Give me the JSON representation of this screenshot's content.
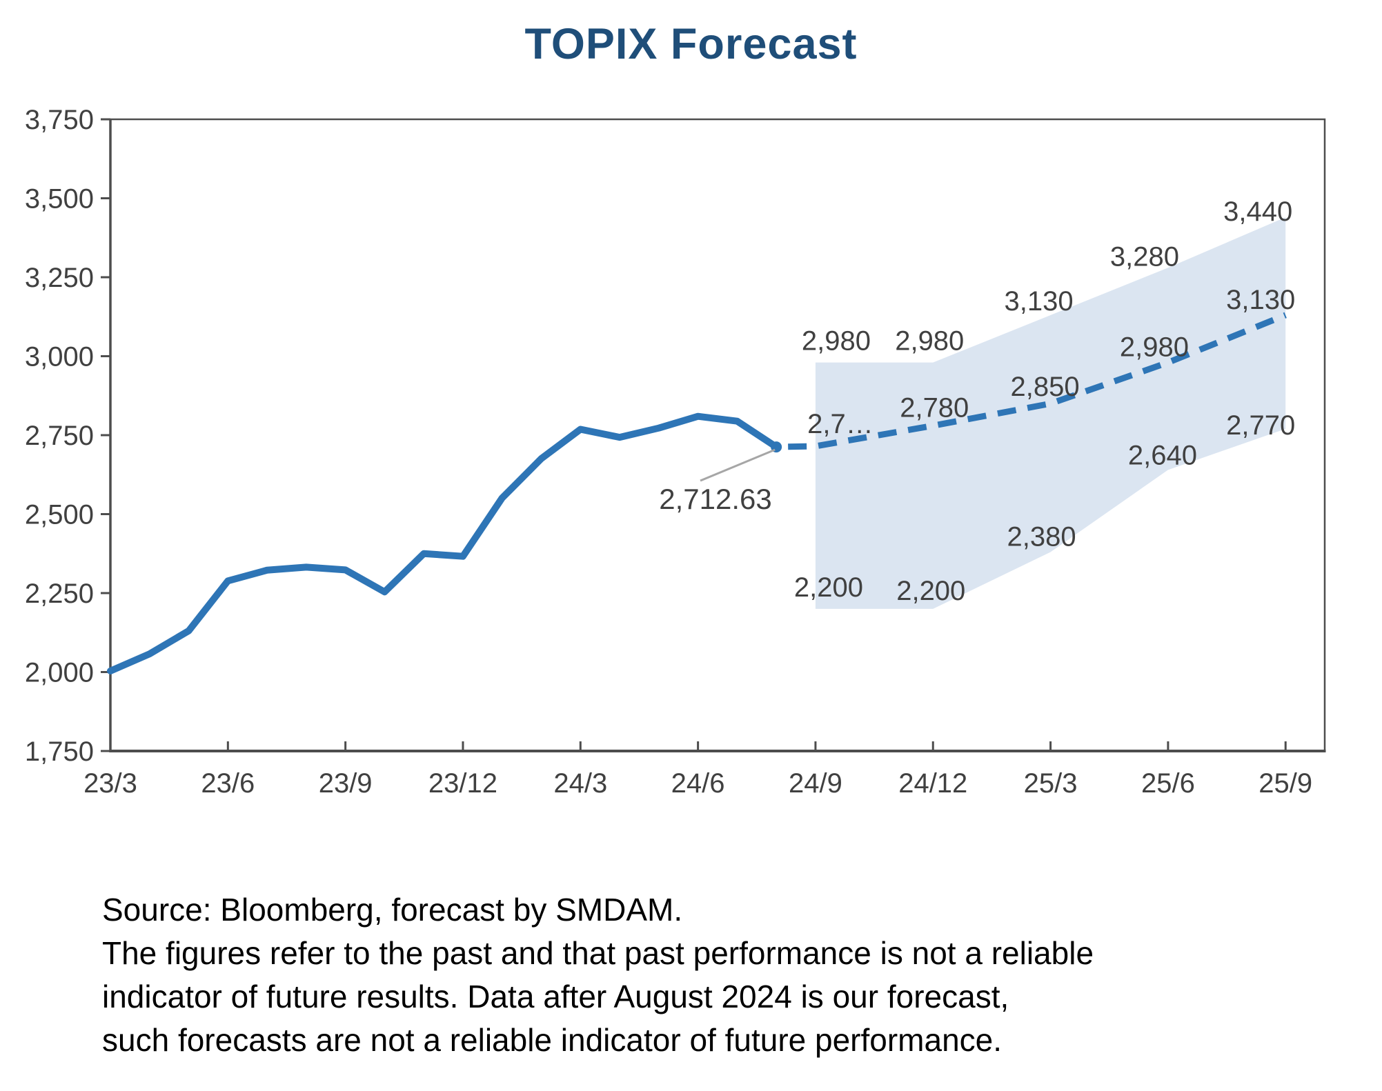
{
  "title": "TOPIX Forecast",
  "footer": {
    "lines": [
      "Source: Bloomberg, forecast by SMDAM.",
      "The figures refer to the past and that past performance is not a reliable",
      "indicator of future results. Data after August 2024 is our forecast,",
      "such forecasts are not a reliable indicator of future performance."
    ]
  },
  "chart_data": {
    "type": "line",
    "title": "TOPIX Forecast",
    "ylim": [
      1750,
      3750
    ],
    "y_ticks": [
      {
        "value": 1750,
        "label": "1,750"
      },
      {
        "value": 2000,
        "label": "2,000"
      },
      {
        "value": 2250,
        "label": "2,250"
      },
      {
        "value": 2500,
        "label": "2,500"
      },
      {
        "value": 2750,
        "label": "2,750"
      },
      {
        "value": 3000,
        "label": "3,000"
      },
      {
        "value": 3250,
        "label": "3,250"
      },
      {
        "value": 3500,
        "label": "3,500"
      },
      {
        "value": 3750,
        "label": "3,750"
      }
    ],
    "x_tick_labels": [
      "23/3",
      "23/6",
      "23/9",
      "23/12",
      "24/3",
      "24/6",
      "24/9",
      "24/12",
      "25/3",
      "25/6",
      "25/9"
    ],
    "grid": false,
    "legend": "none",
    "series": [
      {
        "name": "TOPIX actual (solid line)",
        "style": "solid",
        "x": [
          "23/3",
          "23/4",
          "23/5",
          "23/6",
          "23/7",
          "23/8",
          "23/9",
          "23/10",
          "23/11",
          "23/12",
          "24/1",
          "24/2",
          "24/3",
          "24/4",
          "24/5",
          "24/6",
          "24/7",
          "24/8"
        ],
        "values": [
          2003.5,
          2057.5,
          2130.6,
          2288.6,
          2322.6,
          2332.1,
          2323.4,
          2253.7,
          2374.9,
          2366.4,
          2551.1,
          2675.7,
          2768.6,
          2743.2,
          2772.5,
          2809.6,
          2794.3,
          2712.63
        ]
      },
      {
        "name": "Forecast central (dashed line)",
        "style": "dashed",
        "x": [
          "24/9",
          "24/12",
          "25/3",
          "25/6",
          "25/9"
        ],
        "values": [
          2715,
          2780,
          2850,
          2980,
          3130
        ],
        "labels": [
          "2,7…",
          "2,780",
          "2,850",
          "2,980",
          "3,130"
        ]
      },
      {
        "name": "Forecast range upper (band top)",
        "style": "band-upper",
        "x": [
          "24/9",
          "24/12",
          "25/3",
          "25/6",
          "25/9"
        ],
        "values": [
          2980,
          2980,
          3130,
          3280,
          3440
        ],
        "labels": [
          "2,980",
          "2,980",
          "3,130",
          "3,280",
          "3,440"
        ]
      },
      {
        "name": "Forecast range lower (band bottom)",
        "style": "band-lower",
        "x": [
          "24/9",
          "24/12",
          "25/3",
          "25/6",
          "25/9"
        ],
        "values": [
          2200,
          2200,
          2380,
          2640,
          2770
        ],
        "labels": [
          "2,200",
          "2,200",
          "2,380",
          "2,640",
          "2,770"
        ]
      }
    ],
    "annotation": {
      "text": "2,712.63",
      "x": "24/8",
      "value": 2712.63
    },
    "colors": {
      "line_blue": "#2E75B6",
      "band_fill": "#DBE5F1",
      "title": "#1F4E79",
      "label_text": "#404040",
      "axis": "#4D4D4D",
      "leader_line": "#A6A6A6",
      "background": "#FFFFFF"
    }
  }
}
